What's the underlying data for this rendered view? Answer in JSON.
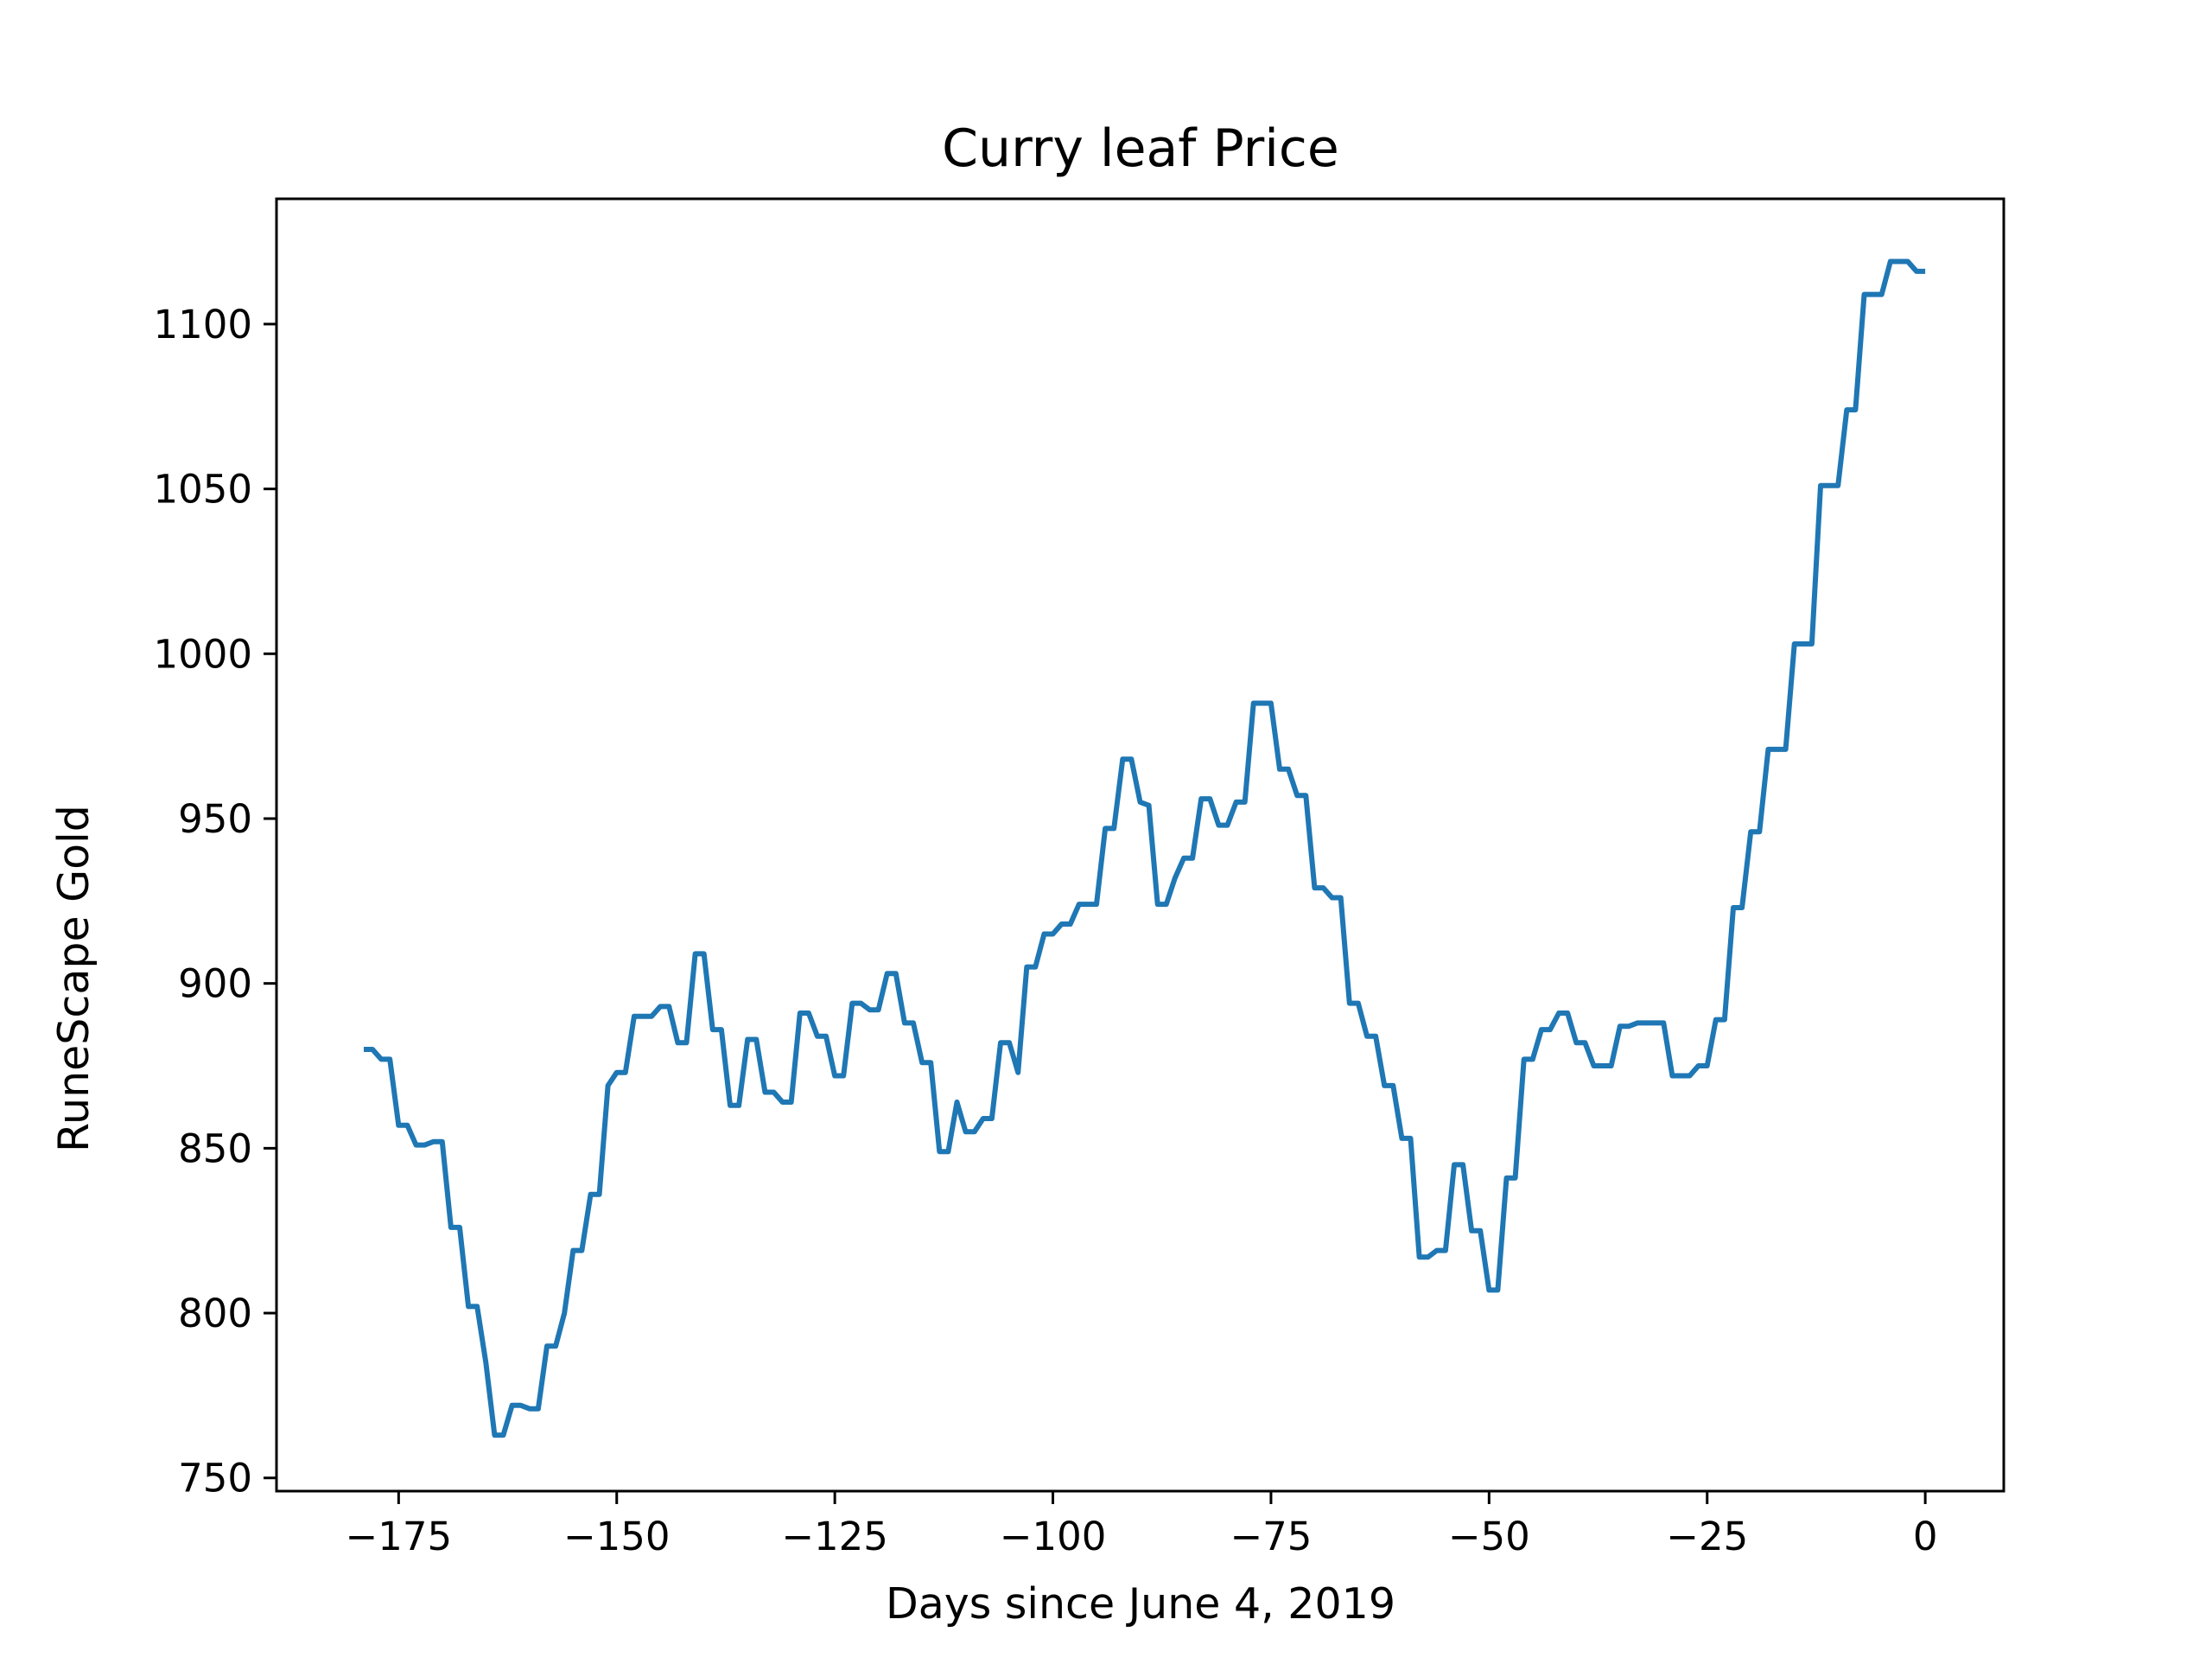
{
  "chart_data": {
    "type": "line",
    "title": "Curry leaf Price",
    "xlabel": "Days since June 4, 2019",
    "ylabel": "RuneScape Gold",
    "xlim": [
      -189,
      9
    ],
    "ylim": [
      746,
      1138
    ],
    "xticks": [
      -175,
      -150,
      -125,
      -100,
      -75,
      -50,
      -25,
      0
    ],
    "xtick_labels": [
      "−175",
      "−150",
      "−125",
      "−100",
      "−75",
      "−50",
      "−25",
      "0"
    ],
    "yticks": [
      750,
      800,
      850,
      900,
      950,
      1000,
      1050,
      1100
    ],
    "ytick_labels": [
      "750",
      "800",
      "850",
      "900",
      "950",
      "1000",
      "1050",
      "1100"
    ],
    "grid": false,
    "line_color": "#1f77b4",
    "series": [
      {
        "x": [
          -179,
          -178,
          -177,
          -176,
          -175,
          -174,
          -173,
          -172,
          -171,
          -170,
          -169,
          -168,
          -167,
          -166,
          -165,
          -164,
          -163,
          -162,
          -161,
          -160,
          -159,
          -158,
          -157,
          -156,
          -155,
          -154,
          -153,
          -152,
          -151,
          -150,
          -149,
          -148,
          -147,
          -146,
          -145,
          -144,
          -143,
          -142,
          -141,
          -140,
          -139,
          -138,
          -137,
          -136,
          -135,
          -134,
          -133,
          -132,
          -131,
          -130,
          -129,
          -128,
          -127,
          -126,
          -125,
          -124,
          -123,
          -122,
          -121,
          -120,
          -119,
          -118,
          -117,
          -116,
          -115,
          -114,
          -113,
          -112,
          -111,
          -110,
          -109,
          -108,
          -107,
          -106,
          -105,
          -104,
          -103,
          -102,
          -101,
          -100,
          -99,
          -98,
          -97,
          -96,
          -95,
          -94,
          -93,
          -92,
          -91,
          -90,
          -89,
          -88,
          -87,
          -86,
          -85,
          -84,
          -83,
          -82,
          -81,
          -80,
          -79,
          -78,
          -77,
          -76,
          -75,
          -74,
          -73,
          -72,
          -71,
          -70,
          -69,
          -68,
          -67,
          -66,
          -65,
          -64,
          -63,
          -62,
          -61,
          -60,
          -59,
          -58,
          -57,
          -56,
          -55,
          -54,
          -53,
          -52,
          -51,
          -50,
          -49,
          -48,
          -47,
          -46,
          -45,
          -44,
          -43,
          -42,
          -41,
          -40,
          -39,
          -38,
          -37,
          -36,
          -35,
          -34,
          -33,
          -32,
          -31,
          -30,
          -29,
          -28,
          -27,
          -26,
          -25,
          -24,
          -23,
          -22,
          -21,
          -20,
          -19,
          -18,
          -17,
          -16,
          -15,
          -14,
          -13,
          -12,
          -11,
          -10,
          -9,
          -8,
          -7,
          -6,
          -5,
          -4,
          -3,
          -2,
          -1,
          0
        ],
        "y": [
          880,
          880,
          877,
          877,
          857,
          857,
          851,
          851,
          852,
          852,
          826,
          826,
          802,
          802,
          785,
          763,
          763,
          772,
          772,
          771,
          771,
          790,
          790,
          800,
          819,
          819,
          836,
          836,
          869,
          873,
          873,
          890,
          890,
          890,
          893,
          893,
          882,
          882,
          909,
          909,
          886,
          886,
          863,
          863,
          883,
          883,
          867,
          867,
          864,
          864,
          891,
          891,
          884,
          884,
          872,
          872,
          894,
          894,
          892,
          892,
          903,
          903,
          888,
          888,
          876,
          876,
          849,
          849,
          864,
          855,
          855,
          859,
          859,
          882,
          882,
          873,
          905,
          905,
          915,
          915,
          918,
          918,
          924,
          924,
          924,
          947,
          947,
          968,
          968,
          955,
          954,
          924,
          924,
          932,
          938,
          938,
          956,
          956,
          948,
          948,
          955,
          955,
          985,
          985,
          985,
          965,
          965,
          957,
          957,
          929,
          929,
          926,
          926,
          894,
          894,
          884,
          884,
          869,
          869,
          853,
          853,
          817,
          817,
          819,
          819,
          845,
          845,
          825,
          825,
          807,
          807,
          841,
          841,
          877,
          877,
          886,
          886,
          891,
          891,
          882,
          882,
          875,
          875,
          875,
          887,
          887,
          888,
          888,
          888,
          888,
          872,
          872,
          872,
          875,
          875,
          889,
          889,
          923,
          923,
          946,
          946,
          971,
          971,
          971,
          1003,
          1003,
          1003,
          1051,
          1051,
          1051,
          1074,
          1074,
          1109,
          1109,
          1109,
          1119,
          1119,
          1119,
          1116,
          1116
        ]
      }
    ]
  }
}
